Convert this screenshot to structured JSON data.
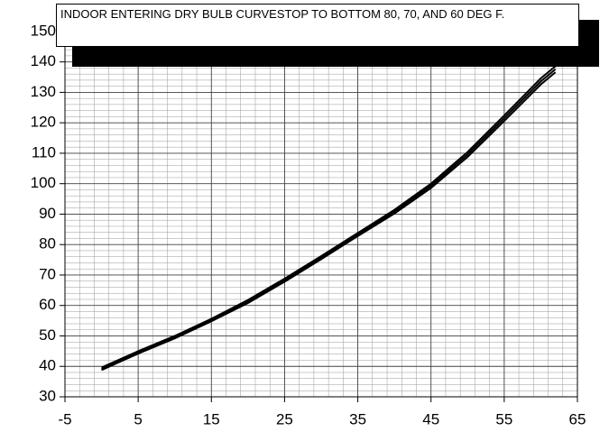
{
  "chart_data": {
    "type": "line",
    "title": "INDOOR ENTERING DRY BULB CURVESTOP TO BOTTOM 80, 70, AND 60 DEG F.",
    "x": [
      0,
      5,
      10,
      15,
      20,
      25,
      30,
      35,
      40,
      45,
      50,
      55,
      60,
      62
    ],
    "series": [
      {
        "color": "#000000",
        "values": [
          39.6,
          45,
          50,
          55.6,
          61.8,
          68.8,
          76.2,
          83.8,
          91.4,
          100,
          110.4,
          122.4,
          134.6,
          138.6
        ]
      },
      {
        "color": "#000000",
        "values": [
          39.2,
          44.6,
          49.6,
          55.2,
          61.3,
          68.3,
          75.7,
          83.3,
          90.8,
          99.3,
          109.6,
          121.5,
          133.6,
          137.6
        ]
      },
      {
        "color": "#000000",
        "values": [
          38.8,
          44.2,
          49.2,
          54.8,
          60.8,
          67.8,
          75.2,
          82.8,
          90.2,
          98.6,
          108.8,
          120.6,
          132.6,
          136.6
        ]
      }
    ],
    "xlim": [
      -5,
      65
    ],
    "xticks": [
      -5,
      5,
      15,
      25,
      35,
      45,
      55,
      65
    ],
    "ylim": [
      30,
      155
    ],
    "yticks": [
      30,
      40,
      50,
      60,
      70,
      80,
      90,
      100,
      110,
      120,
      130,
      140,
      150
    ],
    "grid": true,
    "minor_grid": true
  }
}
